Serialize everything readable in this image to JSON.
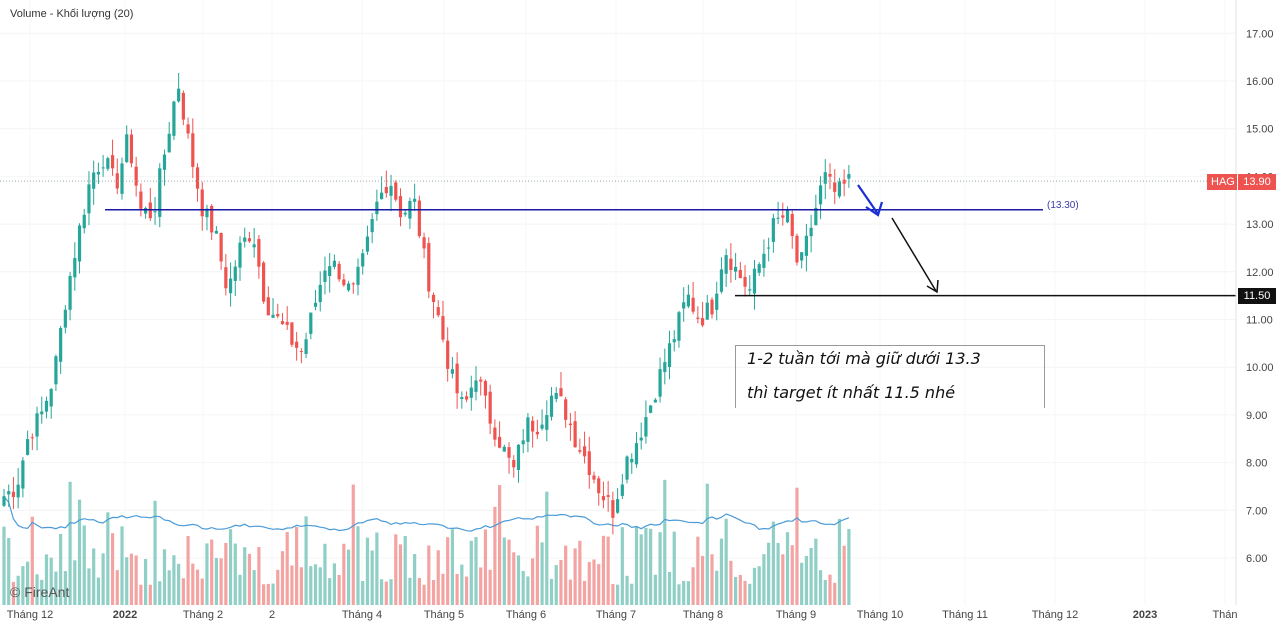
{
  "legend": {
    "text": "Volume - Khối lượng (20)"
  },
  "watermark": {
    "text": "© FireAnt"
  },
  "note": {
    "line1": "1-2 tuần tới mà giữ dưới 13.3",
    "line2": "thì target ít nhất 11.5 nhé"
  },
  "symbol_tag": {
    "symbol": "HAG",
    "price": "13.90"
  },
  "support_tag": {
    "price": "11.50"
  },
  "level_label": {
    "text": "(13.30)"
  },
  "colors": {
    "up": "#26a69a",
    "down": "#ef5350",
    "up_volume": "#8fcfc6",
    "down_volume": "#f3a4a2",
    "ma_line": "#4a9bd9",
    "resistance": "#1a1aa6",
    "support": "#111111",
    "arrow_blue": "#1a2fd6",
    "arrow_black": "#111111",
    "tag_red": "#ef5350",
    "tag_black": "#111111"
  },
  "chart_data": {
    "type": "candlestick",
    "symbol": "HAG",
    "last_price": 13.9,
    "y_ticks": [
      "6.00",
      "7.00",
      "8.00",
      "9.00",
      "10.00",
      "11.00",
      "12.00",
      "13.00",
      "14.00",
      "15.00",
      "16.00",
      "17.00"
    ],
    "ylim": [
      5.5,
      17.5
    ],
    "x_ticks": [
      "Tháng 12",
      "2022",
      "Tháng 2",
      "2",
      "Tháng 4",
      "Tháng 5",
      "Tháng 6",
      "Tháng 7",
      "Tháng 8",
      "Tháng 9",
      "Tháng 10",
      "Tháng 11",
      "Tháng 12",
      "2023",
      "Thán"
    ],
    "close_path": [
      7.3,
      7.5,
      8.6,
      9.0,
      9.8,
      11.5,
      12.8,
      14.0,
      14.4,
      13.8,
      14.8,
      13.3,
      13.2,
      14.6,
      16.0,
      14.5,
      13.3,
      12.8,
      11.6,
      12.5,
      12.9,
      11.4,
      11.0,
      10.6,
      10.3,
      11.3,
      12.3,
      12.0,
      11.5,
      12.3,
      13.4,
      14.0,
      13.2,
      13.5,
      12.0,
      11.0,
      9.8,
      9.1,
      9.9,
      9.0,
      8.4,
      7.8,
      8.8,
      8.8,
      9.4,
      9.2,
      8.5,
      8.0,
      7.4,
      7.0,
      8.0,
      8.5,
      9.2,
      10.0,
      10.7,
      11.5,
      11.0,
      11.3,
      12.5,
      12.0,
      11.6,
      12.3,
      13.0,
      13.2,
      12.0,
      13.0,
      14.0,
      13.6,
      13.9
    ],
    "candle_count": 180,
    "volume_ma_length": 20,
    "horizontal_levels": [
      {
        "value": 13.3,
        "label": "(13.30)"
      },
      {
        "value": 11.5,
        "label": "11.50"
      }
    ],
    "annotations": [
      "1-2 tuần tới mà giữ dưới 13.3",
      "thì target ít nhất 11.5 nhé"
    ]
  }
}
